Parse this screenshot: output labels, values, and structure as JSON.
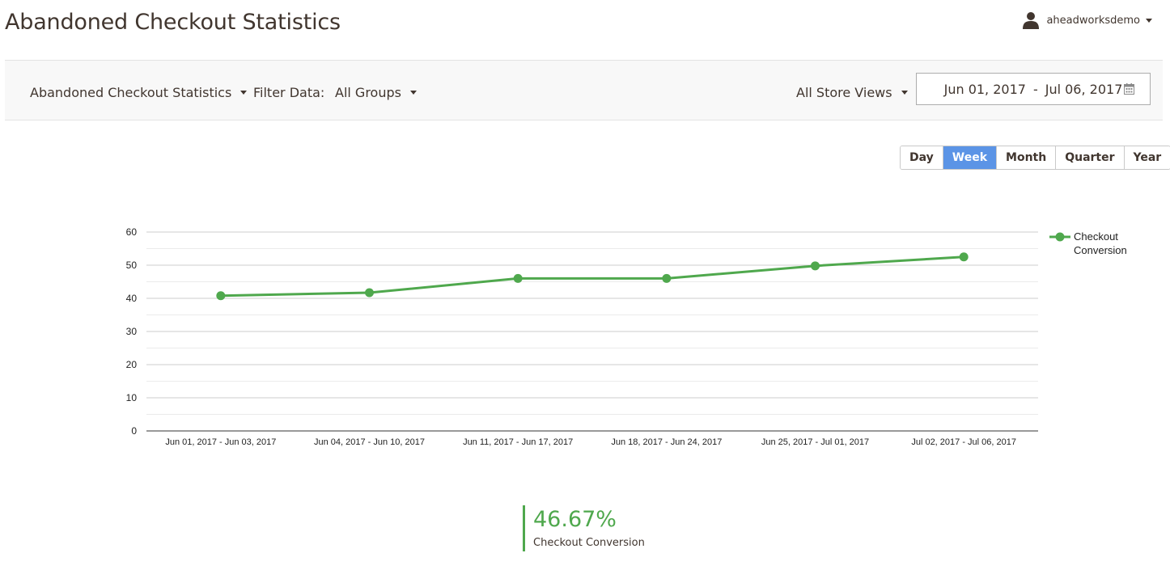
{
  "page": {
    "title": "Abandoned Checkout Statistics"
  },
  "user": {
    "name": "aheadworksdemo",
    "icon": "user-icon"
  },
  "toolbar": {
    "report_selector": "Abandoned Checkout Statistics",
    "filter_label": "Filter Data:",
    "group_selector": "All Groups",
    "store_selector": "All Store Views",
    "date_from": "Jun 01, 2017",
    "date_separator": "-",
    "date_to": "Jul 06, 2017",
    "calendar_icon": "calendar-icon"
  },
  "period": {
    "options": [
      "Day",
      "Week",
      "Month",
      "Quarter",
      "Year"
    ],
    "active": "Week"
  },
  "colors": {
    "accent": "#5b94e6",
    "series": "#4fa84d",
    "text": "#41362f"
  },
  "chart_data": {
    "type": "line",
    "categories": [
      "Jun 01, 2017 - Jun 03, 2017",
      "Jun 04, 2017 - Jun 10, 2017",
      "Jun 11, 2017 - Jun 17, 2017",
      "Jun 18, 2017 - Jun 24, 2017",
      "Jun 25, 2017 - Jul 01, 2017",
      "Jul 02, 2017 - Jul 06, 2017"
    ],
    "series": [
      {
        "name": "Checkout Conversion",
        "legend_lines": [
          "Checkout",
          "Conversion"
        ],
        "color": "#4fa84d",
        "values": [
          40.8,
          41.7,
          46.0,
          46.0,
          49.8,
          52.5
        ]
      }
    ],
    "ylim": [
      0,
      60
    ],
    "yticks": [
      0,
      10,
      20,
      30,
      40,
      50,
      60
    ],
    "grid": true,
    "minor_grid": true,
    "legend": "right",
    "xlabel": "",
    "ylabel": ""
  },
  "summary": {
    "value": "46.67%",
    "label": "Checkout Conversion"
  }
}
